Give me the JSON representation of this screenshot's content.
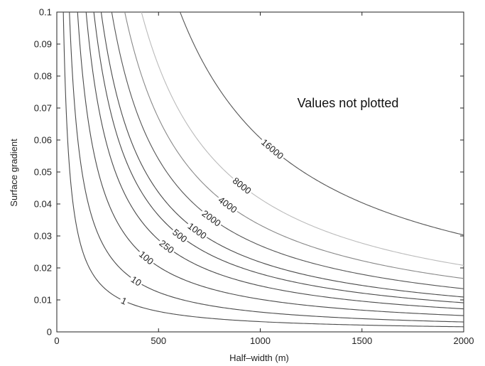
{
  "chart_data": {
    "type": "line",
    "title": "",
    "xlabel": "Half–width (m)",
    "ylabel": "Surface gradient",
    "xlim": [
      0,
      2000
    ],
    "ylim": [
      0,
      0.1
    ],
    "x_ticks": [
      0,
      500,
      1000,
      1500,
      2000
    ],
    "x_tick_labels": [
      "0",
      "500",
      "1000",
      "1500",
      "2000"
    ],
    "y_ticks": [
      0,
      0.01,
      0.02,
      0.03,
      0.04,
      0.05,
      0.06,
      0.07,
      0.08,
      0.09,
      0.1
    ],
    "y_tick_labels": [
      "0",
      "0.01",
      "0.02",
      "0.03",
      "0.04",
      "0.05",
      "0.06",
      "0.07",
      "0.08",
      "0.09",
      "0.1"
    ],
    "annotation": "Values not plotted",
    "contour_label_sample_x": [
      330,
      390,
      440,
      540,
      605,
      690,
      760,
      840,
      910,
      1060
    ],
    "series": [
      {
        "name": "1",
        "label": "1",
        "x_at_top": 32,
        "color": "#4a4a4a"
      },
      {
        "name": "10",
        "label": "10",
        "x_at_top": 62,
        "color": "#4a4a4a"
      },
      {
        "name": "100",
        "label": "100",
        "x_at_top": 102,
        "color": "#4a4a4a"
      },
      {
        "name": "250",
        "label": "250",
        "x_at_top": 144,
        "color": "#4a4a4a"
      },
      {
        "name": "500",
        "label": "500",
        "x_at_top": 182,
        "color": "#4a4a4a"
      },
      {
        "name": "1000",
        "label": "1000",
        "x_at_top": 218,
        "color": "#4a4a4a"
      },
      {
        "name": "2000",
        "label": "2000",
        "x_at_top": 270,
        "color": "#555555"
      },
      {
        "name": "4000",
        "label": "4000",
        "x_at_top": 334,
        "color": "#888888"
      },
      {
        "name": "8000",
        "label": "8000",
        "x_at_top": 416,
        "color": "#bbbbbb"
      },
      {
        "name": "16000",
        "label": "16000",
        "x_at_top": 606,
        "color": "#555555"
      }
    ]
  }
}
